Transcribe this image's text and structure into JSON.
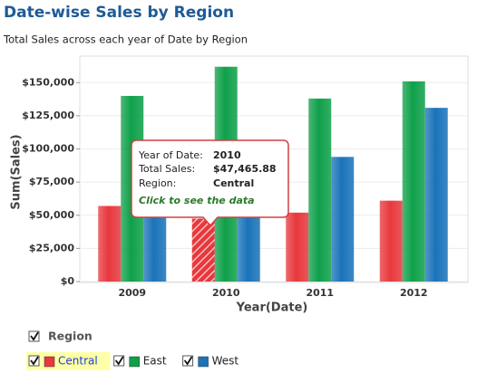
{
  "chart_data": {
    "type": "bar",
    "title": "Date-wise Sales by Region",
    "subtitle": "Total Sales across each year of Date by Region",
    "y_label": "Sum(Sales)",
    "x_label": "Year(Date)",
    "categories": [
      "2009",
      "2010",
      "2011",
      "2012"
    ],
    "series": [
      {
        "name": "Central",
        "color": "#e8383d",
        "values": [
          57000,
          47465.88,
          52000,
          61000
        ]
      },
      {
        "name": "East",
        "color": "#0fa04a",
        "values": [
          140000,
          162000,
          138000,
          151000
        ]
      },
      {
        "name": "West",
        "color": "#1a73b9",
        "values": [
          49000,
          49000,
          94000,
          131000
        ]
      }
    ],
    "ylim": [
      0,
      170000
    ],
    "yticks": [
      {
        "value": 0,
        "label": "$0"
      },
      {
        "value": 25000,
        "label": "$25,000"
      },
      {
        "value": 50000,
        "label": "$50,000"
      },
      {
        "value": 75000,
        "label": "$75,000"
      },
      {
        "value": 100000,
        "label": "$100,000"
      },
      {
        "value": 125000,
        "label": "$125,000"
      },
      {
        "value": 150000,
        "label": "$150,000"
      }
    ],
    "grid": true,
    "legend_title": "Region",
    "tooltip": {
      "rows": [
        {
          "label": "Year of Date:",
          "value": "2010"
        },
        {
          "label": "Total Sales:",
          "value": "$47,465.88"
        },
        {
          "label": "Region:",
          "value": "Central"
        }
      ],
      "link": "Click to see the data"
    }
  }
}
